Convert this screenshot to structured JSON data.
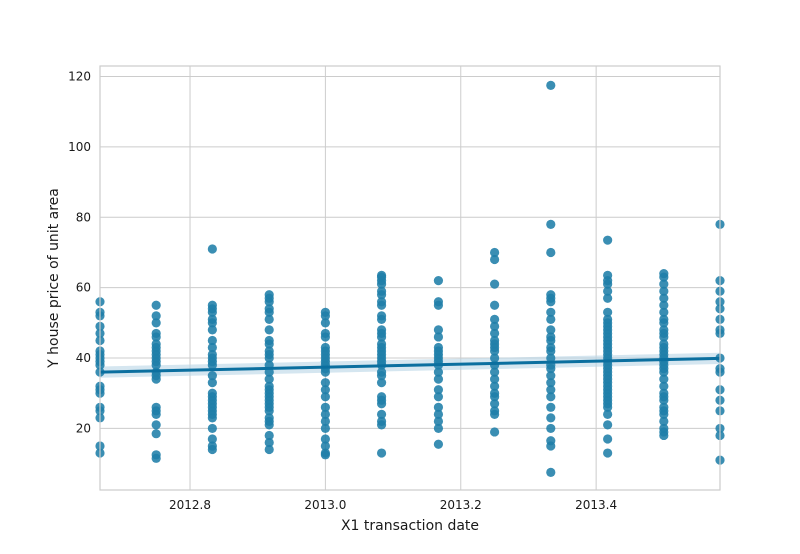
{
  "chart_data": {
    "type": "scatter",
    "title": "",
    "xlabel": "X1 transaction date",
    "ylabel": "Y house price of unit area",
    "xlim": [
      2012.667,
      2013.583
    ],
    "ylim": [
      2.5,
      123
    ],
    "x_ticks": [
      2012.8,
      2013.0,
      2013.2,
      2013.4
    ],
    "x_tick_labels": [
      "2012.8",
      "2013.0",
      "2013.2",
      "2013.4"
    ],
    "y_ticks": [
      20,
      40,
      60,
      80,
      100,
      120
    ],
    "y_tick_labels": [
      "20",
      "40",
      "60",
      "80",
      "100",
      "120"
    ],
    "grid": true,
    "colors": {
      "points": "#1f7ea8",
      "line": "#0b6f9f",
      "band": "#b9d5e6",
      "grid": "#cccccc",
      "frame": "#cccccc"
    },
    "regression": {
      "x": [
        2012.667,
        2013.583
      ],
      "y": [
        36.0,
        39.9
      ],
      "ci_halfwidth": 1.6
    },
    "points": [
      {
        "x": 2012.667,
        "y": [
          13,
          15,
          23,
          25,
          26,
          30,
          31,
          32,
          36,
          38,
          39,
          40,
          41,
          42,
          45,
          47,
          49,
          52,
          53,
          56
        ]
      },
      {
        "x": 2012.75,
        "y": [
          11.5,
          12.5,
          18.5,
          21,
          24,
          25,
          26,
          34,
          35,
          36,
          38,
          39,
          40,
          41,
          42,
          43,
          44,
          46,
          47,
          50,
          52,
          55
        ]
      },
      {
        "x": 2012.833,
        "y": [
          14,
          15,
          17,
          20,
          23,
          24,
          25,
          26,
          27,
          28,
          29,
          30,
          33,
          35,
          38,
          39,
          40,
          41,
          43,
          45,
          48,
          50,
          51,
          53,
          54,
          55,
          71
        ]
      },
      {
        "x": 2012.917,
        "y": [
          14,
          16,
          18,
          21,
          22,
          23,
          25,
          26,
          27,
          28,
          29,
          30,
          31,
          32,
          34,
          36,
          38,
          40,
          41,
          42,
          44,
          45,
          48,
          51,
          53,
          54,
          56,
          57,
          58
        ]
      },
      {
        "x": 2013.0,
        "y": [
          12.5,
          13,
          15,
          17,
          20,
          22,
          24,
          26,
          29,
          31,
          33,
          36,
          37,
          38,
          39,
          40,
          41,
          42,
          43,
          46,
          47,
          50,
          52,
          53
        ]
      },
      {
        "x": 2013.083,
        "y": [
          13,
          21,
          22,
          24,
          27,
          28,
          29,
          33,
          35,
          36,
          38,
          39,
          40,
          41,
          42,
          43,
          44,
          46,
          47,
          48,
          51,
          52,
          55,
          56,
          58,
          59,
          61,
          62,
          63,
          63.5
        ]
      },
      {
        "x": 2013.167,
        "y": [
          15.5,
          20,
          22,
          24,
          26,
          29,
          31,
          34,
          36,
          38,
          39,
          40,
          41,
          42,
          43,
          46,
          48,
          55,
          56,
          62
        ]
      },
      {
        "x": 2013.25,
        "y": [
          19,
          24,
          25,
          27,
          29,
          30,
          32,
          34,
          36,
          38,
          40,
          42,
          43,
          44,
          45,
          47,
          49,
          51,
          55,
          61,
          68,
          70
        ]
      },
      {
        "x": 2013.333,
        "y": [
          7.5,
          15,
          16.5,
          20,
          23,
          26,
          29,
          31,
          33,
          35,
          37,
          38,
          40,
          42,
          43,
          45,
          46,
          48,
          51,
          53,
          56,
          57,
          58,
          70,
          78,
          117.5
        ]
      },
      {
        "x": 2013.417,
        "y": [
          13,
          17,
          21,
          24,
          26,
          27,
          28,
          29,
          30,
          31,
          32,
          33,
          34,
          35,
          36,
          37,
          38,
          39,
          40,
          41,
          42,
          43,
          44,
          45,
          46,
          47,
          48,
          49,
          50,
          51,
          53,
          57,
          59,
          61,
          62,
          63.5,
          73.5
        ]
      },
      {
        "x": 2013.5,
        "y": [
          18,
          19,
          20,
          22,
          24,
          25,
          26,
          28,
          29,
          30,
          32,
          34,
          36,
          37,
          38,
          39,
          40,
          41,
          42,
          43,
          44,
          46,
          47,
          48,
          50,
          51,
          53,
          55,
          57,
          59,
          61,
          63,
          64
        ]
      },
      {
        "x": 2013.583,
        "y": [
          11,
          18,
          20,
          25,
          28,
          31,
          36,
          37,
          40,
          47,
          48,
          51,
          54,
          56,
          59,
          62,
          78
        ]
      }
    ]
  }
}
